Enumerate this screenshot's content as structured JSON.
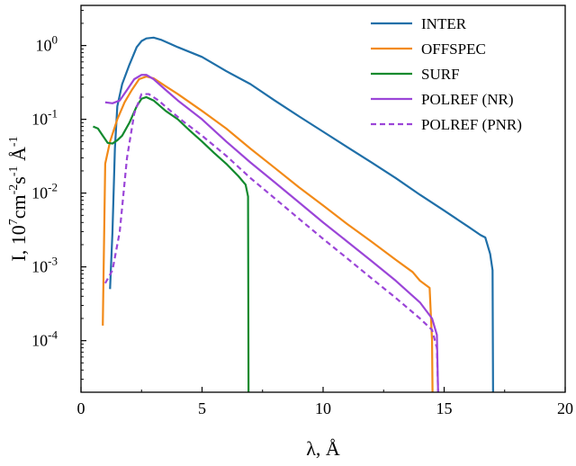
{
  "chart_data": {
    "type": "line",
    "title": "",
    "xlabel": "λ, Å",
    "ylabel": {
      "main": "I, 10",
      "exp1": "7",
      "mid": "cm",
      "exp2": "-2",
      "s": "s",
      "exp3": "-1",
      "unit": " Å",
      "exp4": "-1"
    },
    "xlim": [
      0,
      20
    ],
    "ylim": [
      2e-05,
      3.5
    ],
    "yscale": "log",
    "grid": false,
    "legend_position": "top-right",
    "x_ticks": [
      {
        "value": 0,
        "label": "0"
      },
      {
        "value": 5,
        "label": "5"
      },
      {
        "value": 10,
        "label": "10"
      },
      {
        "value": 15,
        "label": "15"
      },
      {
        "value": 20,
        "label": "20"
      }
    ],
    "y_ticks": [
      {
        "value": 0.0001,
        "base": "10",
        "exp": "-4"
      },
      {
        "value": 0.001,
        "base": "10",
        "exp": "-3"
      },
      {
        "value": 0.01,
        "base": "10",
        "exp": "-2"
      },
      {
        "value": 0.1,
        "base": "10",
        "exp": "-1"
      },
      {
        "value": 1,
        "base": "10",
        "exp": "0"
      }
    ],
    "series": [
      {
        "name": "INTER",
        "color": "#1f6fa8",
        "dash": "solid",
        "points": [
          [
            1.2,
            0.0005
          ],
          [
            1.3,
            0.003
          ],
          [
            1.4,
            0.04
          ],
          [
            1.5,
            0.15
          ],
          [
            1.7,
            0.3
          ],
          [
            2.0,
            0.55
          ],
          [
            2.3,
            0.95
          ],
          [
            2.5,
            1.15
          ],
          [
            2.7,
            1.25
          ],
          [
            3.0,
            1.28
          ],
          [
            3.3,
            1.2
          ],
          [
            3.7,
            1.05
          ],
          [
            4.0,
            0.95
          ],
          [
            5.0,
            0.7
          ],
          [
            6.0,
            0.45
          ],
          [
            7.0,
            0.3
          ],
          [
            8.0,
            0.18
          ],
          [
            9.0,
            0.11
          ],
          [
            10.0,
            0.068
          ],
          [
            11.0,
            0.042
          ],
          [
            12.0,
            0.026
          ],
          [
            13.0,
            0.016
          ],
          [
            14.0,
            0.0095
          ],
          [
            15.0,
            0.0058
          ],
          [
            15.5,
            0.0045
          ],
          [
            16.0,
            0.0035
          ],
          [
            16.5,
            0.0027
          ],
          [
            16.7,
            0.0025
          ],
          [
            16.9,
            0.0015
          ],
          [
            17.0,
            0.0009
          ],
          [
            17.02,
            2e-05
          ]
        ]
      },
      {
        "name": "OFFSPEC",
        "color": "#f28a18",
        "dash": "solid",
        "points": [
          [
            0.9,
            0.00016
          ],
          [
            1.0,
            0.025
          ],
          [
            1.2,
            0.05
          ],
          [
            1.5,
            0.1
          ],
          [
            1.8,
            0.17
          ],
          [
            2.1,
            0.25
          ],
          [
            2.4,
            0.35
          ],
          [
            2.7,
            0.38
          ],
          [
            3.0,
            0.36
          ],
          [
            3.5,
            0.28
          ],
          [
            4.0,
            0.22
          ],
          [
            5.0,
            0.13
          ],
          [
            6.0,
            0.075
          ],
          [
            7.0,
            0.04
          ],
          [
            8.0,
            0.022
          ],
          [
            9.0,
            0.012
          ],
          [
            10.0,
            0.0068
          ],
          [
            11.0,
            0.0038
          ],
          [
            12.0,
            0.0022
          ],
          [
            13.0,
            0.00125
          ],
          [
            13.7,
            0.00085
          ],
          [
            14.0,
            0.00065
          ],
          [
            14.4,
            0.00052
          ],
          [
            14.5,
            0.0001
          ],
          [
            14.52,
            2e-05
          ]
        ]
      },
      {
        "name": "SURF",
        "color": "#138a2e",
        "dash": "solid",
        "points": [
          [
            0.5,
            0.08
          ],
          [
            0.7,
            0.075
          ],
          [
            0.9,
            0.06
          ],
          [
            1.1,
            0.048
          ],
          [
            1.3,
            0.047
          ],
          [
            1.5,
            0.052
          ],
          [
            1.7,
            0.06
          ],
          [
            2.0,
            0.09
          ],
          [
            2.3,
            0.15
          ],
          [
            2.5,
            0.19
          ],
          [
            2.7,
            0.2
          ],
          [
            3.0,
            0.18
          ],
          [
            3.5,
            0.13
          ],
          [
            4.0,
            0.1
          ],
          [
            4.5,
            0.07
          ],
          [
            5.0,
            0.05
          ],
          [
            5.5,
            0.035
          ],
          [
            6.0,
            0.025
          ],
          [
            6.5,
            0.017
          ],
          [
            6.8,
            0.013
          ],
          [
            6.9,
            0.009
          ],
          [
            6.92,
            2e-05
          ]
        ]
      },
      {
        "name": "POLREF (NR)",
        "color": "#9b45d8",
        "dash": "solid",
        "points": [
          [
            1.0,
            0.17
          ],
          [
            1.3,
            0.165
          ],
          [
            1.6,
            0.18
          ],
          [
            1.9,
            0.25
          ],
          [
            2.2,
            0.35
          ],
          [
            2.5,
            0.4
          ],
          [
            2.7,
            0.4
          ],
          [
            3.0,
            0.35
          ],
          [
            3.5,
            0.25
          ],
          [
            4.0,
            0.18
          ],
          [
            5.0,
            0.1
          ],
          [
            6.0,
            0.05
          ],
          [
            7.0,
            0.026
          ],
          [
            8.0,
            0.014
          ],
          [
            9.0,
            0.0075
          ],
          [
            10.0,
            0.004
          ],
          [
            11.0,
            0.0022
          ],
          [
            12.0,
            0.0012
          ],
          [
            13.0,
            0.00065
          ],
          [
            14.0,
            0.00033
          ],
          [
            14.5,
            0.0002
          ],
          [
            14.7,
            0.00012
          ],
          [
            14.75,
            2e-05
          ]
        ]
      },
      {
        "name": "POLREF (PNR)",
        "color": "#9b45d8",
        "dash": "dashed",
        "points": [
          [
            1.0,
            0.0006
          ],
          [
            1.3,
            0.0009
          ],
          [
            1.6,
            0.003
          ],
          [
            1.9,
            0.03
          ],
          [
            2.2,
            0.12
          ],
          [
            2.5,
            0.22
          ],
          [
            2.8,
            0.22
          ],
          [
            3.2,
            0.18
          ],
          [
            3.7,
            0.13
          ],
          [
            4.2,
            0.095
          ],
          [
            5.0,
            0.06
          ],
          [
            6.0,
            0.032
          ],
          [
            7.0,
            0.016
          ],
          [
            8.0,
            0.0085
          ],
          [
            9.0,
            0.0045
          ],
          [
            10.0,
            0.0024
          ],
          [
            11.0,
            0.0013
          ],
          [
            12.0,
            0.0007
          ],
          [
            13.0,
            0.00038
          ],
          [
            14.0,
            0.0002
          ],
          [
            14.5,
            0.00014
          ],
          [
            14.7,
            8e-05
          ],
          [
            14.75,
            2e-05
          ]
        ]
      }
    ]
  }
}
